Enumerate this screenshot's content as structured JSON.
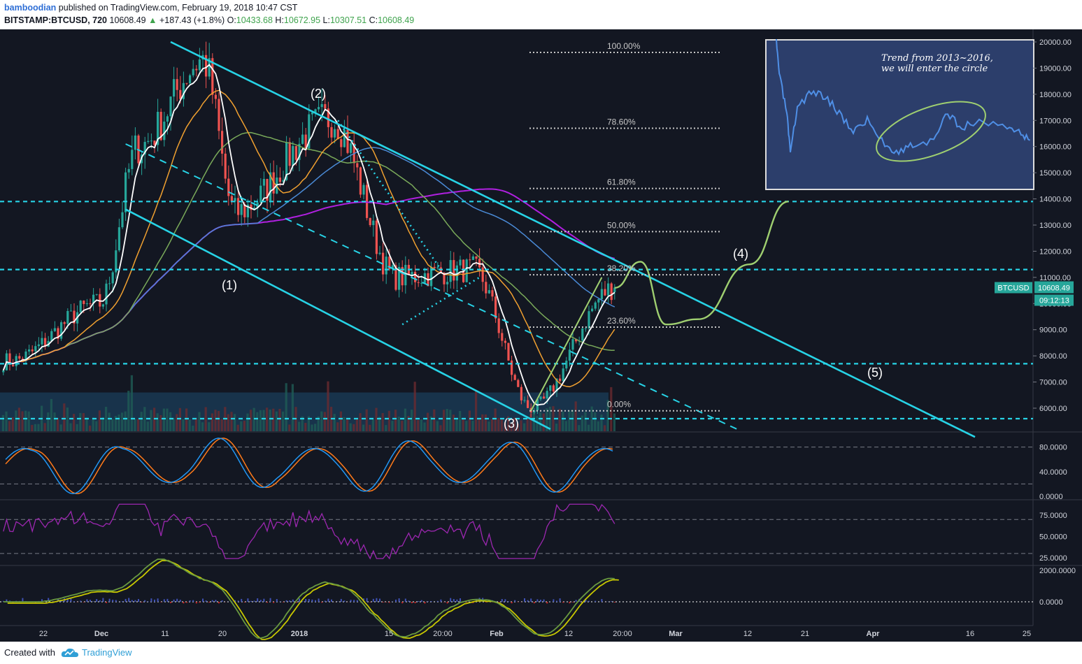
{
  "header": {
    "publisher": "bamboodian",
    "published_text": "published on TradingView.com, February 19, 2018 10:47 CST",
    "symbol": "BITSTAMP:BTCUSD",
    "interval": ", 720",
    "last": "10608.49",
    "change_arrow": "▲",
    "change": "+187.43 (+1.8%)",
    "o_label": "O:",
    "o": "10433.68",
    "h_label": "H:",
    "h": "10672.95",
    "l_label": "L:",
    "l": "10307.51",
    "c_label": "C:",
    "c": "10608.49"
  },
  "footer": {
    "created_with": "Created with",
    "brand": "TradingView"
  },
  "price_axis": {
    "ticks": [
      "20000.00",
      "19000.00",
      "18000.00",
      "17000.00",
      "16000.00",
      "15000.00",
      "14000.00",
      "13000.00",
      "12000.00",
      "11000.00",
      "10000.00",
      "9000.00",
      "8000.00",
      "7000.00",
      "6000.00"
    ],
    "ticker_label": "BTCUSD",
    "last_price_label": "10608.49",
    "countdown": "09:12:13"
  },
  "stoch_axis": [
    "80.0000",
    "40.0000",
    "0.0000"
  ],
  "rsi_axis": [
    "75.0000",
    "50.0000",
    "25.0000"
  ],
  "macd_axis": [
    "2000.0000",
    "0.0000"
  ],
  "time_axis": [
    "22",
    "Dec",
    "11",
    "20",
    "2018",
    "15",
    "20:00",
    "Feb",
    "12",
    "20:00",
    "Mar",
    "12",
    "21",
    "Apr",
    "16",
    "25"
  ],
  "fib_levels": [
    "100.00%",
    "78.60%",
    "61.80%",
    "50.00%",
    "38.20%",
    "23.60%",
    "0.00%"
  ],
  "wave_labels": [
    "(1)",
    "(2)",
    "(3)",
    "(4)",
    "(5)"
  ],
  "inset_text": [
    "Trend from 2013~2016,",
    "we will enter the circle"
  ],
  "colors": {
    "background": "#131722",
    "up": "#26a69a",
    "down": "#ef5350",
    "cyan": "#27d3e6",
    "ma_white": "#ffffff",
    "ma_orange": "#f0a030",
    "ma_green": "#7aaa5a",
    "ma_blue": "#4a8ad6",
    "ma_purple": "#b020e0",
    "projection": "#9fcf70",
    "stoch_k": "#2196f3",
    "stoch_d": "#ff7a1a",
    "rsi": "#9c27b0"
  },
  "chart_data": {
    "type": "candlestick",
    "symbol": "BITSTAMP:BTCUSD",
    "ylim": [
      5200,
      20500
    ],
    "price_key_points": [
      {
        "date": "Nov 17",
        "close": 7800
      },
      {
        "date": "Dec 1",
        "close": 10000
      },
      {
        "date": "Dec 7",
        "close": 16000
      },
      {
        "date": "Dec 17",
        "close": 19300
      },
      {
        "date": "Dec 22",
        "close": 13500
      },
      {
        "date": "Jan 6",
        "close": 17100
      },
      {
        "date": "Jan 16",
        "close": 11000
      },
      {
        "date": "Jan 28",
        "close": 11300
      },
      {
        "date": "Feb 6",
        "close": 6000
      },
      {
        "date": "Feb 19",
        "close": 10608.49
      }
    ],
    "last": {
      "open": 10433.68,
      "high": 10672.95,
      "low": 10307.51,
      "close": 10608.49,
      "change": 187.43,
      "change_pct": 1.8
    },
    "horizontal_levels": [
      13900,
      11300,
      7700,
      5600
    ],
    "fibonacci": [
      {
        "level": "100.00%",
        "price": 19600
      },
      {
        "level": "78.60%",
        "price": 16700
      },
      {
        "level": "61.80%",
        "price": 14400
      },
      {
        "level": "50.00%",
        "price": 12750
      },
      {
        "level": "38.20%",
        "price": 11100
      },
      {
        "level": "23.60%",
        "price": 9100
      },
      {
        "level": "0.00%",
        "price": 5900
      }
    ],
    "waves": [
      {
        "label": "(1)",
        "date": "Dec 22",
        "price": 11300
      },
      {
        "label": "(2)",
        "date": "Jan 6",
        "price": 17100
      },
      {
        "label": "(3)",
        "date": "Feb 6",
        "price": 6000
      },
      {
        "label": "(4)",
        "date": "Mar 12",
        "price": 14000
      },
      {
        "label": "(5)",
        "date": "Apr 6",
        "price": 7500
      }
    ],
    "projection_path": [
      {
        "date": "Feb 19",
        "price": 10600
      },
      {
        "date": "Feb 23",
        "price": 11600
      },
      {
        "date": "Feb 27",
        "price": 9200
      },
      {
        "date": "Mar 4",
        "price": 9400
      },
      {
        "date": "Mar 12",
        "price": 11500
      },
      {
        "date": "Mar 18",
        "price": 13900
      }
    ],
    "stoch_ylim": [
      0,
      100
    ],
    "stoch_levels": [
      80,
      20
    ],
    "rsi_ylim": [
      20,
      90
    ],
    "rsi_levels": [
      70,
      30
    ],
    "rsi_last": 65,
    "macd_levels": [
      2000,
      0
    ]
  }
}
